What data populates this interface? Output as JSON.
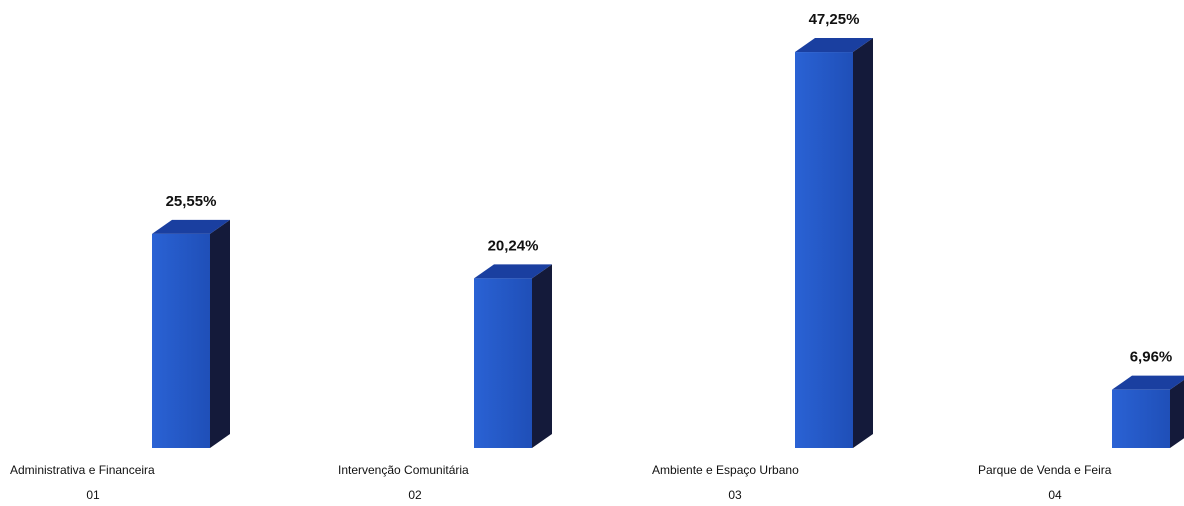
{
  "chart_data": {
    "type": "bar",
    "categories": [
      "Administrativa e Financeira",
      "Intervenção Comunitária",
      "Ambiente e Espaço Urbano",
      "Parque de Venda e Feira"
    ],
    "codes": [
      "01",
      "02",
      "03",
      "04"
    ],
    "values": [
      25.55,
      20.24,
      47.25,
      6.96
    ],
    "value_labels": [
      "25,55%",
      "20,24%",
      "47,25%",
      "6,96%"
    ],
    "ylim": [
      0,
      50
    ],
    "grid": false,
    "legend": "none",
    "style": "3d-column"
  },
  "colors": {
    "bar_front": "#2457c5",
    "bar_top": "#1a3fa0",
    "bar_side": "#141a3a"
  }
}
